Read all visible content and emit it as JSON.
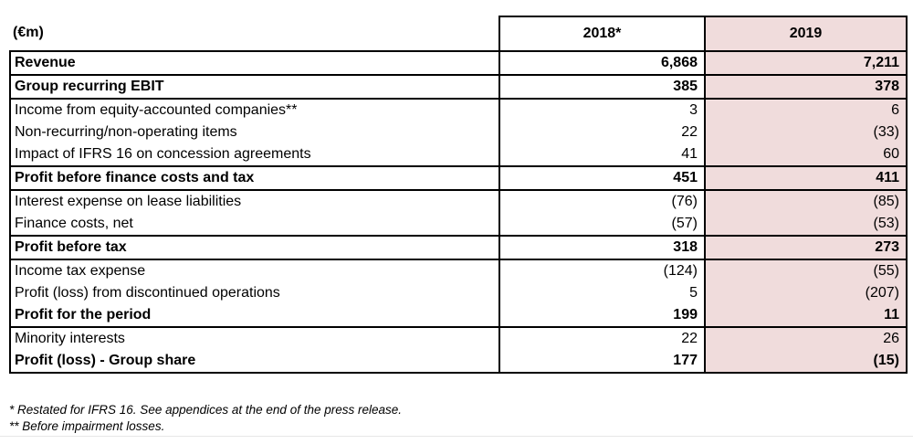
{
  "header": {
    "unit_label": "(€m)",
    "col_2018": "2018*",
    "col_2019": "2019"
  },
  "table": {
    "groups": [
      {
        "rows": [
          {
            "label": "Revenue",
            "bold": true,
            "v2018": "6,868",
            "v2019": "7,211"
          }
        ]
      },
      {
        "rows": [
          {
            "label": "Group recurring EBIT",
            "bold": true,
            "v2018": "385",
            "v2019": "378"
          }
        ]
      },
      {
        "rows": [
          {
            "label": "Income from equity-accounted companies**",
            "bold": false,
            "v2018": "3",
            "v2019": "6"
          },
          {
            "label": "Non-recurring/non-operating items",
            "bold": false,
            "v2018": "22",
            "v2019": "(33)"
          },
          {
            "label": "Impact of IFRS 16 on concession agreements",
            "bold": false,
            "v2018": "41",
            "v2019": "60"
          }
        ]
      },
      {
        "rows": [
          {
            "label": "Profit before finance costs and tax",
            "bold": true,
            "v2018": "451",
            "v2019": "411"
          }
        ]
      },
      {
        "rows": [
          {
            "label": "Interest expense on lease liabilities",
            "bold": false,
            "v2018": "(76)",
            "v2019": "(85)"
          },
          {
            "label": "Finance costs, net",
            "bold": false,
            "v2018": "(57)",
            "v2019": "(53)"
          }
        ]
      },
      {
        "rows": [
          {
            "label": "Profit before tax",
            "bold": true,
            "v2018": "318",
            "v2019": "273"
          }
        ]
      },
      {
        "rows": [
          {
            "label": "Income tax expense",
            "bold": false,
            "v2018": "(124)",
            "v2019": "(55)"
          },
          {
            "label": "Profit (loss) from discontinued operations",
            "bold": false,
            "v2018": "5",
            "v2019": "(207)"
          },
          {
            "label": "Profit for the period",
            "bold": true,
            "v2018": "199",
            "v2019": "11"
          }
        ]
      },
      {
        "rows": [
          {
            "label": "Minority interests",
            "bold": false,
            "v2018": "22",
            "v2019": "26"
          },
          {
            "label": "Profit (loss) - Group share",
            "bold": true,
            "v2018": "177",
            "v2019": "(15)"
          }
        ]
      }
    ]
  },
  "footnotes": {
    "note1": "* Restated for IFRS 16. See appendices at the end of the press release.",
    "note2": "** Before impairment losses."
  },
  "colors": {
    "highlight_2019": "#f0dcdc",
    "border": "#000000",
    "text": "#000000"
  }
}
